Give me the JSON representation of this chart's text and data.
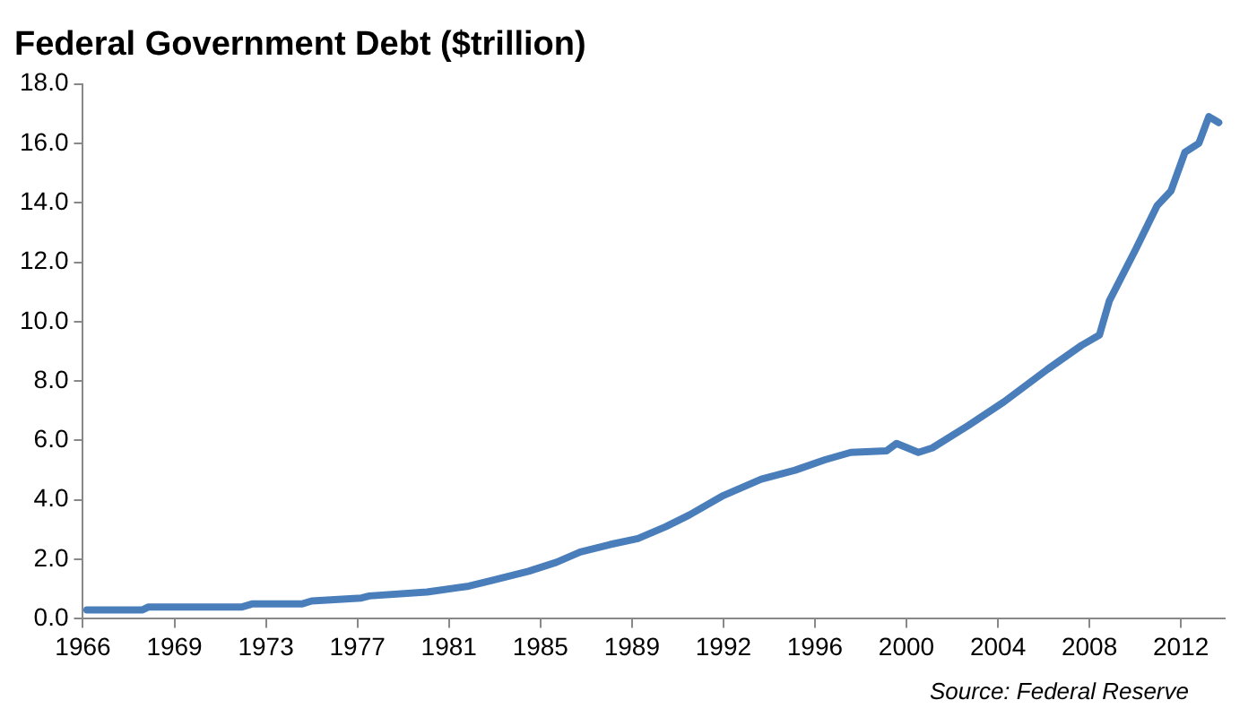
{
  "chart_data": {
    "type": "line",
    "title": "Federal Government Debt ($trillion)",
    "x": [
      "1966-03",
      "1968-07",
      "1968-10",
      "1972-09",
      "1973-02",
      "1975-03",
      "1975-08",
      "1977-09",
      "1978-01",
      "1980-06",
      "1982-03",
      "1983-03",
      "1984-09",
      "1985-11",
      "1986-11",
      "1988-02",
      "1989-04",
      "1990-06",
      "1991-06",
      "1992-11",
      "1994-06",
      "1995-11",
      "1997-02",
      "1998-03",
      "1999-09",
      "2000-02",
      "2001-01",
      "2001-08",
      "2003-02",
      "2004-08",
      "2006-06",
      "2007-11",
      "2008-08",
      "2009-01",
      "2010-02",
      "2011-01",
      "2011-08",
      "2012-03",
      "2012-10",
      "2013-03",
      "2013-08"
    ],
    "series": [
      {
        "color": "#4a7ebb",
        "values": [
          0.3,
          0.3,
          0.4,
          0.4,
          0.5,
          0.5,
          0.6,
          0.7,
          0.77,
          0.9,
          1.1,
          1.3,
          1.6,
          1.9,
          2.25,
          2.5,
          2.7,
          3.1,
          3.5,
          4.15,
          4.7,
          5.0,
          5.35,
          5.6,
          5.65,
          5.9,
          5.6,
          5.75,
          6.5,
          7.3,
          8.4,
          9.2,
          9.55,
          10.7,
          12.4,
          13.9,
          14.4,
          15.7,
          16.0,
          16.9,
          16.7
        ]
      }
    ],
    "xlim": [
      "1966-01",
      "2013-11"
    ],
    "xticks": [
      {
        "value": "1966-01",
        "label": "1966"
      },
      {
        "value": "1969-11",
        "label": "1969"
      },
      {
        "value": "1973-09",
        "label": "1973"
      },
      {
        "value": "1977-07",
        "label": "1977"
      },
      {
        "value": "1981-05",
        "label": "1981"
      },
      {
        "value": "1985-03",
        "label": "1985"
      },
      {
        "value": "1989-01",
        "label": "1989"
      },
      {
        "value": "1992-11",
        "label": "1992"
      },
      {
        "value": "1996-09",
        "label": "1996"
      },
      {
        "value": "2000-07",
        "label": "2000"
      },
      {
        "value": "2004-05",
        "label": "2004"
      },
      {
        "value": "2008-03",
        "label": "2008"
      },
      {
        "value": "2012-01",
        "label": "2012"
      }
    ],
    "ylim": [
      0,
      18
    ],
    "yticks": [
      {
        "value": 0,
        "label": "0.0"
      },
      {
        "value": 2,
        "label": "2.0"
      },
      {
        "value": 4,
        "label": "4.0"
      },
      {
        "value": 6,
        "label": "6.0"
      },
      {
        "value": 8,
        "label": "8.0"
      },
      {
        "value": 10,
        "label": "10.0"
      },
      {
        "value": 12,
        "label": "12.0"
      },
      {
        "value": 14,
        "label": "14.0"
      },
      {
        "value": 16,
        "label": "16.0"
      },
      {
        "value": 18,
        "label": "18.0"
      }
    ],
    "annotations": [
      "Source: Federal Reserve"
    ],
    "marker": "none",
    "line_style": "solid"
  }
}
